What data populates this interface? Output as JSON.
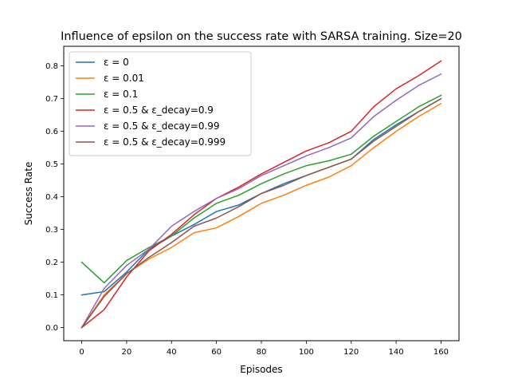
{
  "chart_data": {
    "type": "line",
    "title": "Influence of epsilon on the success rate with SARSA training. Size=20",
    "xlabel": "Episodes",
    "ylabel": "Success Rate",
    "xlim": [
      -8,
      168
    ],
    "ylim": [
      -0.04,
      0.86
    ],
    "xticks": [
      0,
      20,
      40,
      60,
      80,
      100,
      120,
      140,
      160
    ],
    "yticks": [
      0.0,
      0.1,
      0.2,
      0.3,
      0.4,
      0.5,
      0.6,
      0.7,
      0.8
    ],
    "ytick_labels": [
      "0.0",
      "0.1",
      "0.2",
      "0.3",
      "0.4",
      "0.5",
      "0.6",
      "0.7",
      "0.8"
    ],
    "grid": false,
    "legend_position": "upper-left",
    "x": [
      0,
      10,
      20,
      30,
      40,
      50,
      60,
      70,
      80,
      90,
      100,
      110,
      120,
      130,
      140,
      150,
      160
    ],
    "series": [
      {
        "name": "ε = 0",
        "color": "#1f77b4",
        "values": [
          0.1,
          0.11,
          0.17,
          0.24,
          0.28,
          0.315,
          0.355,
          0.375,
          0.41,
          0.44,
          0.465,
          0.49,
          0.515,
          0.575,
          0.62,
          0.66,
          0.7
        ]
      },
      {
        "name": "ε = 0.01",
        "color": "#ff7f0e",
        "values": [
          0.0,
          0.1,
          0.165,
          0.21,
          0.245,
          0.29,
          0.305,
          0.34,
          0.38,
          0.405,
          0.435,
          0.46,
          0.495,
          0.55,
          0.6,
          0.645,
          0.685
        ]
      },
      {
        "name": "ε = 0.1",
        "color": "#2ca02c",
        "values": [
          0.2,
          0.137,
          0.205,
          0.245,
          0.28,
          0.335,
          0.38,
          0.405,
          0.44,
          0.47,
          0.495,
          0.51,
          0.53,
          0.585,
          0.63,
          0.675,
          0.71
        ]
      },
      {
        "name": "ε = 0.5 & ε_decay=0.9",
        "color": "#d62728",
        "values": [
          0.0,
          0.055,
          0.155,
          0.235,
          0.285,
          0.345,
          0.395,
          0.43,
          0.47,
          0.505,
          0.54,
          0.565,
          0.6,
          0.675,
          0.73,
          0.77,
          0.815
        ]
      },
      {
        "name": "ε = 0.5 & ε_decay=0.99",
        "color": "#9467bd",
        "values": [
          0.0,
          0.12,
          0.19,
          0.24,
          0.31,
          0.355,
          0.395,
          0.425,
          0.465,
          0.495,
          0.525,
          0.55,
          0.58,
          0.645,
          0.695,
          0.74,
          0.775
        ]
      },
      {
        "name": "ε = 0.5 & ε_decay=0.999",
        "color": "#8c564b",
        "values": [
          0.0,
          0.095,
          0.165,
          0.215,
          0.26,
          0.31,
          0.335,
          0.37,
          0.41,
          0.435,
          0.465,
          0.49,
          0.515,
          0.57,
          0.615,
          0.66,
          0.7
        ]
      }
    ]
  }
}
